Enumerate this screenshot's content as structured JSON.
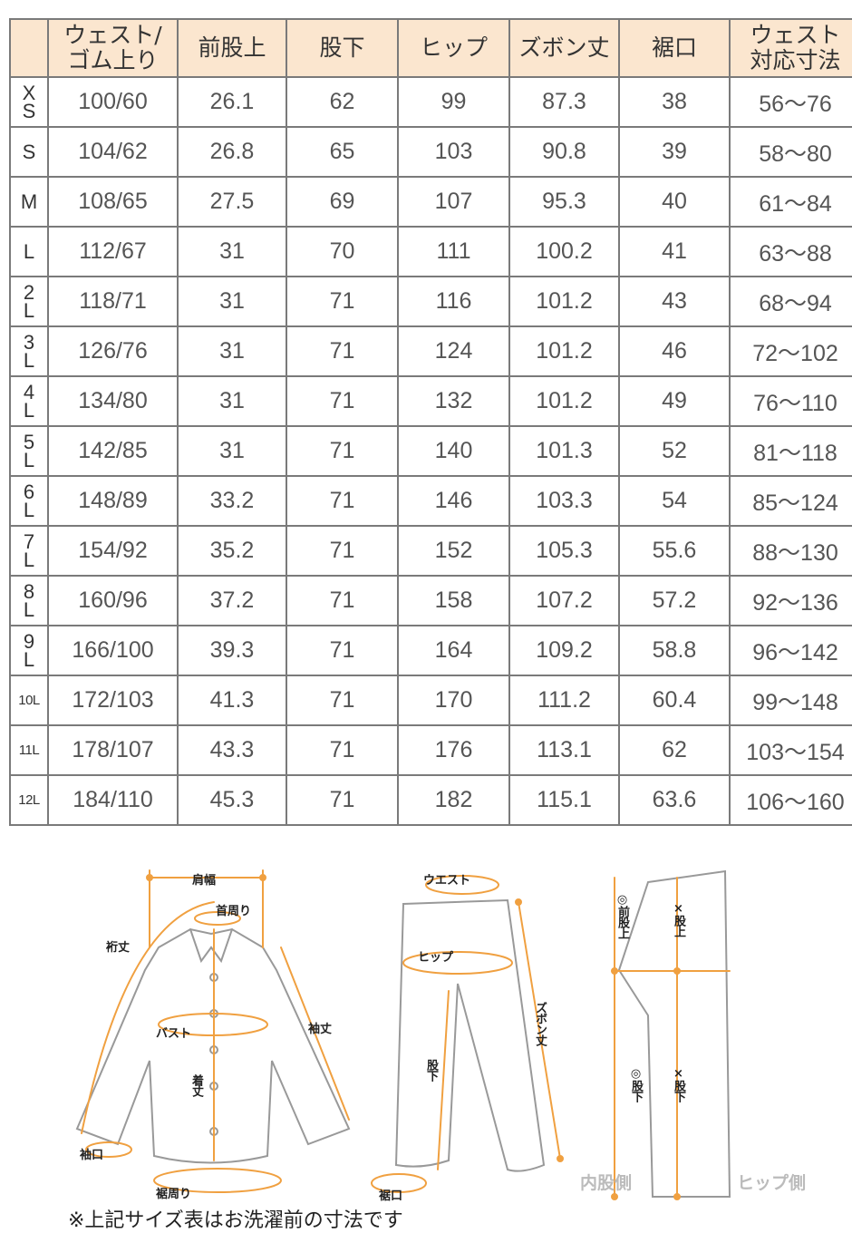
{
  "table": {
    "headers": [
      "",
      "ウェスト/\nゴム上り",
      "前股上",
      "股下",
      "ヒップ",
      "ズボン丈",
      "裾口",
      "ウェスト\n対応寸法"
    ],
    "rows": [
      [
        "XS",
        "100/60",
        "26.1",
        "62",
        "99",
        "87.3",
        "38",
        "56～76"
      ],
      [
        "S",
        "104/62",
        "26.8",
        "65",
        "103",
        "90.8",
        "39",
        "58～80"
      ],
      [
        "M",
        "108/65",
        "27.5",
        "69",
        "107",
        "95.3",
        "40",
        "61～84"
      ],
      [
        "L",
        "112/67",
        "31",
        "70",
        "111",
        "100.2",
        "41",
        "63～88"
      ],
      [
        "2L",
        "118/71",
        "31",
        "71",
        "116",
        "101.2",
        "43",
        "68～94"
      ],
      [
        "3L",
        "126/76",
        "31",
        "71",
        "124",
        "101.2",
        "46",
        "72～102"
      ],
      [
        "4L",
        "134/80",
        "31",
        "71",
        "132",
        "101.2",
        "49",
        "76～110"
      ],
      [
        "5L",
        "142/85",
        "31",
        "71",
        "140",
        "101.3",
        "52",
        "81～118"
      ],
      [
        "6L",
        "148/89",
        "33.2",
        "71",
        "146",
        "103.3",
        "54",
        "85～124"
      ],
      [
        "7L",
        "154/92",
        "35.2",
        "71",
        "152",
        "105.3",
        "55.6",
        "88～130"
      ],
      [
        "8L",
        "160/96",
        "37.2",
        "71",
        "158",
        "107.2",
        "57.2",
        "92～136"
      ],
      [
        "9L",
        "166/100",
        "39.3",
        "71",
        "164",
        "109.2",
        "58.8",
        "96～142"
      ],
      [
        "10L",
        "172/103",
        "41.3",
        "71",
        "170",
        "111.2",
        "60.4",
        "99～148"
      ],
      [
        "11L",
        "178/107",
        "43.3",
        "71",
        "176",
        "113.1",
        "62",
        "103～154"
      ],
      [
        "12L",
        "184/110",
        "45.3",
        "71",
        "182",
        "115.1",
        "63.6",
        "106～160"
      ]
    ]
  },
  "diagram": {
    "shirt": {
      "shoulder": "肩幅",
      "neck": "首周り",
      "yuki": "裄丈",
      "bust": "バスト",
      "sleeve": "袖丈",
      "length": "着丈",
      "cuff": "袖口",
      "hem": "裾周り"
    },
    "pants": {
      "waist": "ウエスト",
      "hip": "ヒップ",
      "length": "ズボン丈",
      "inseam": "股下",
      "hem": "裾口"
    },
    "side": {
      "front_rise": "◎前股上",
      "rise": "×股上",
      "inseam_o": "◎股下",
      "inseam_x": "×股下",
      "inner": "内股側",
      "hip_side": "ヒップ側"
    }
  },
  "note": "※上記サイズ表はお洗濯前の寸法です",
  "colors": {
    "header_bg": "#fbe6cf",
    "measure_line": "#f0a040",
    "border": "#7a7a7a"
  }
}
